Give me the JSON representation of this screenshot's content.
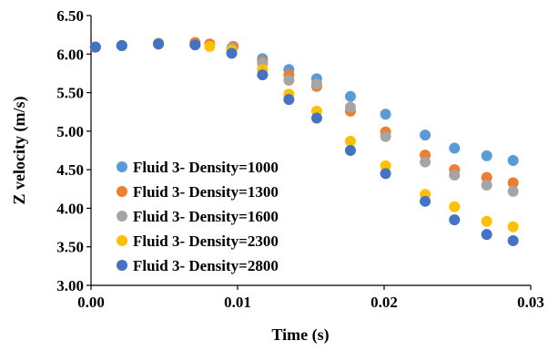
{
  "chart_data": {
    "type": "scatter",
    "title": "",
    "xlabel": "Time (s)",
    "ylabel": "Z velocity (m/s)",
    "xlim": [
      0,
      0.03
    ],
    "ylim": [
      3.0,
      6.5
    ],
    "x_ticks": [
      "0.00",
      "0.01",
      "0.02",
      "0.03"
    ],
    "y_ticks": [
      "3.00",
      "3.50",
      "4.00",
      "4.50",
      "5.00",
      "5.50",
      "6.00",
      "6.50"
    ],
    "grid": false,
    "legend_position": "bottom-left",
    "series": [
      {
        "name": "Fluid 3- Density=1000",
        "color": "#5B9BD5",
        "points": [
          [
            0.0003,
            6.09
          ],
          [
            0.0021,
            6.11
          ],
          [
            0.0046,
            6.13
          ],
          [
            0.0071,
            6.13
          ],
          [
            0.0096,
            6.07
          ],
          [
            0.0117,
            5.94
          ],
          [
            0.0135,
            5.8
          ],
          [
            0.0154,
            5.68
          ],
          [
            0.0177,
            5.45
          ],
          [
            0.0201,
            5.22
          ],
          [
            0.0228,
            4.95
          ],
          [
            0.0248,
            4.78
          ],
          [
            0.027,
            4.68
          ],
          [
            0.0288,
            4.62
          ]
        ]
      },
      {
        "name": "Fluid 3- Density=1300",
        "color": "#ED7D31",
        "points": [
          [
            0.0003,
            6.09
          ],
          [
            0.0021,
            6.11
          ],
          [
            0.0046,
            6.14
          ],
          [
            0.0071,
            6.15
          ],
          [
            0.0081,
            6.13
          ],
          [
            0.0097,
            6.1
          ],
          [
            0.0117,
            5.9
          ],
          [
            0.0135,
            5.73
          ],
          [
            0.0154,
            5.58
          ],
          [
            0.0177,
            5.26
          ],
          [
            0.0201,
            4.99
          ],
          [
            0.0228,
            4.69
          ],
          [
            0.0248,
            4.5
          ],
          [
            0.027,
            4.4
          ],
          [
            0.0288,
            4.33
          ]
        ]
      },
      {
        "name": "Fluid 3- Density=1600",
        "color": "#A5A5A5",
        "points": [
          [
            0.0003,
            6.09
          ],
          [
            0.0021,
            6.11
          ],
          [
            0.0046,
            6.13
          ],
          [
            0.0071,
            6.12
          ],
          [
            0.0096,
            6.08
          ],
          [
            0.0117,
            5.88
          ],
          [
            0.0135,
            5.66
          ],
          [
            0.0154,
            5.61
          ],
          [
            0.0177,
            5.31
          ],
          [
            0.0201,
            4.93
          ],
          [
            0.0228,
            4.6
          ],
          [
            0.0248,
            4.43
          ],
          [
            0.027,
            4.3
          ],
          [
            0.0288,
            4.22
          ]
        ]
      },
      {
        "name": "Fluid 3- Density=2300",
        "color": "#FFC000",
        "points": [
          [
            0.0003,
            6.09
          ],
          [
            0.0021,
            6.11
          ],
          [
            0.0046,
            6.13
          ],
          [
            0.0071,
            6.12
          ],
          [
            0.0081,
            6.1
          ],
          [
            0.0096,
            6.05
          ],
          [
            0.0117,
            5.8
          ],
          [
            0.0135,
            5.48
          ],
          [
            0.0154,
            5.26
          ],
          [
            0.0177,
            4.87
          ],
          [
            0.0201,
            4.55
          ],
          [
            0.0228,
            4.18
          ],
          [
            0.0248,
            4.02
          ],
          [
            0.027,
            3.83
          ],
          [
            0.0288,
            3.76
          ]
        ]
      },
      {
        "name": "Fluid 3- Density=2800",
        "color": "#4472C4",
        "points": [
          [
            0.0003,
            6.09
          ],
          [
            0.0021,
            6.11
          ],
          [
            0.0046,
            6.13
          ],
          [
            0.0071,
            6.12
          ],
          [
            0.0096,
            6.01
          ],
          [
            0.0117,
            5.73
          ],
          [
            0.0135,
            5.41
          ],
          [
            0.0154,
            5.17
          ],
          [
            0.0177,
            4.75
          ],
          [
            0.0201,
            4.45
          ],
          [
            0.0228,
            4.09
          ],
          [
            0.0248,
            3.85
          ],
          [
            0.027,
            3.66
          ],
          [
            0.0288,
            3.58
          ]
        ]
      }
    ]
  }
}
